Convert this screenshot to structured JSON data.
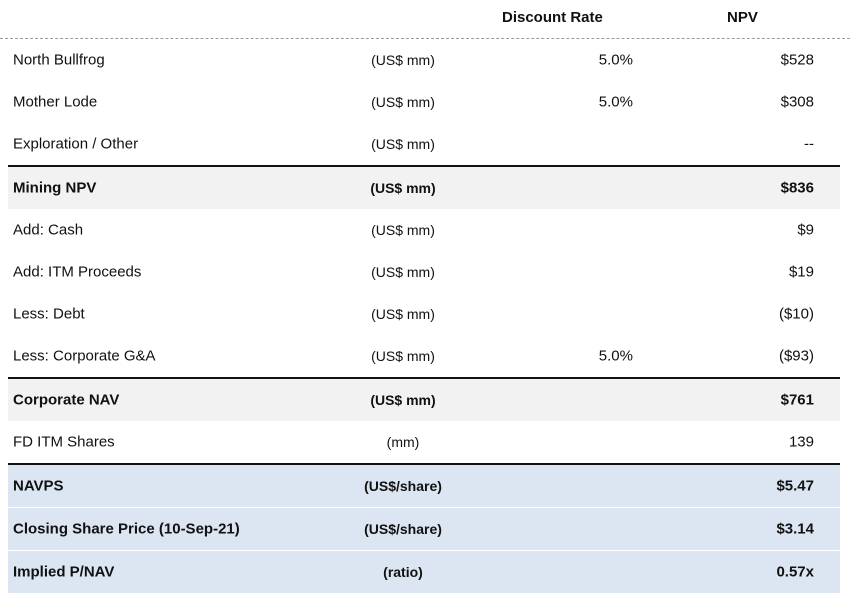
{
  "header": {
    "discount_rate": "Discount Rate",
    "npv": "NPV"
  },
  "rows": [
    {
      "label": "North Bullfrog",
      "unit": "(US$ mm)",
      "rate": "5.0%",
      "npv": "$528"
    },
    {
      "label": "Mother Lode",
      "unit": "(US$ mm)",
      "rate": "5.0%",
      "npv": "$308"
    },
    {
      "label": "Exploration / Other",
      "unit": "(US$ mm)",
      "rate": "",
      "npv": "--"
    },
    {
      "label": "Mining NPV",
      "unit": "(US$ mm)",
      "rate": "",
      "npv": "$836"
    },
    {
      "label": "Add: Cash",
      "unit": "(US$ mm)",
      "rate": "",
      "npv": "$9"
    },
    {
      "label": "Add: ITM Proceeds",
      "unit": "(US$ mm)",
      "rate": "",
      "npv": "$19"
    },
    {
      "label": "Less: Debt",
      "unit": "(US$ mm)",
      "rate": "",
      "npv": "($10)"
    },
    {
      "label": "Less: Corporate G&A",
      "unit": "(US$ mm)",
      "rate": "5.0%",
      "npv": "($93)"
    },
    {
      "label": "Corporate NAV",
      "unit": "(US$ mm)",
      "rate": "",
      "npv": "$761"
    },
    {
      "label": "FD ITM Shares",
      "unit": "(mm)",
      "rate": "",
      "npv": "139"
    },
    {
      "label": "NAVPS",
      "unit": "(US$/share)",
      "rate": "",
      "npv": "$5.47"
    },
    {
      "label": "Closing Share Price (10-Sep-21)",
      "unit": "(US$/share)",
      "rate": "",
      "npv": "$3.14"
    },
    {
      "label": "Implied P/NAV",
      "unit": "(ratio)",
      "rate": "",
      "npv": "0.57x"
    }
  ]
}
